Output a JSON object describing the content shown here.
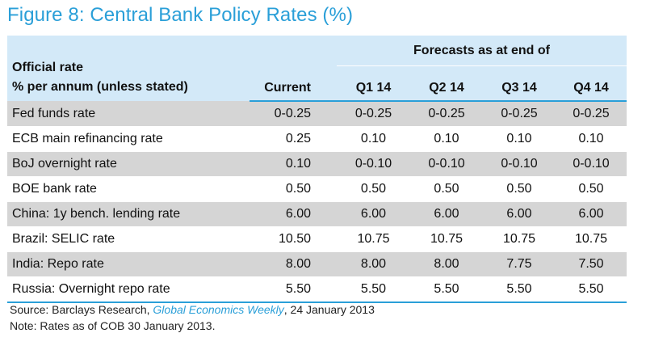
{
  "title": "Figure 8: Central Bank Policy Rates (%)",
  "header": {
    "row_label_line1": "Official rate",
    "row_label_line2": "% per annum (unless stated)",
    "forecast_group": "Forecasts as at end of",
    "current": "Current",
    "quarters": [
      "Q1 14",
      "Q2 14",
      "Q3 14",
      "Q4 14"
    ]
  },
  "rows": [
    {
      "label": "Fed funds rate",
      "current": "0-0.25",
      "q1": "0-0.25",
      "q2": "0-0.25",
      "q3": "0-0.25",
      "q4": "0-0.25"
    },
    {
      "label": "ECB main refinancing rate",
      "current": "0.25",
      "q1": "0.10",
      "q2": "0.10",
      "q3": "0.10",
      "q4": "0.10"
    },
    {
      "label": "BoJ overnight rate",
      "current": "0.10",
      "q1": "0-0.10",
      "q2": "0-0.10",
      "q3": "0-0.10",
      "q4": "0-0.10"
    },
    {
      "label": "BOE bank rate",
      "current": "0.50",
      "q1": "0.50",
      "q2": "0.50",
      "q3": "0.50",
      "q4": "0.50"
    },
    {
      "label": "China: 1y bench. lending rate",
      "current": "6.00",
      "q1": "6.00",
      "q2": "6.00",
      "q3": "6.00",
      "q4": "6.00"
    },
    {
      "label": "Brazil: SELIC rate",
      "current": "10.50",
      "q1": "10.75",
      "q2": "10.75",
      "q3": "10.75",
      "q4": "10.75"
    },
    {
      "label": "India: Repo rate",
      "current": "8.00",
      "q1": "8.00",
      "q2": "8.00",
      "q3": "7.75",
      "q4": "7.50"
    },
    {
      "label": "Russia: Overnight repo rate",
      "current": "5.50",
      "q1": "5.50",
      "q2": "5.50",
      "q3": "5.50",
      "q4": "5.50"
    }
  ],
  "source": {
    "prefix": "Source: Barclays Research, ",
    "publication": "Global Economics Weekly",
    "suffix": ", 24 January 2013"
  },
  "note": "Note: Rates as of COB 30 January 2013.",
  "colors": {
    "accent": "#2a9fd8",
    "header_bg": "#d3e9f8",
    "shade_row": "#d5d5d5"
  }
}
